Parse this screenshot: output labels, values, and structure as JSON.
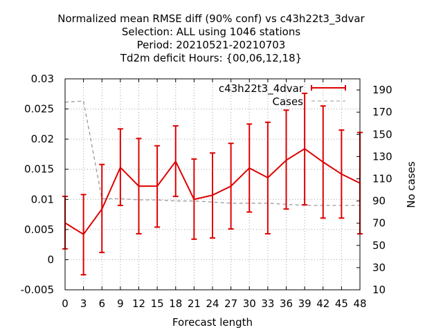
{
  "chart_data": {
    "type": "line",
    "title_lines": [
      "Normalized mean RMSE diff (90% conf) vs c43h22t3_3dvar",
      "Selection: ALL using  1046 stations",
      "Period: 20210521-20210703",
      "Td2m deficit   Hours: {00,06,12,18}"
    ],
    "xlabel": "Forecast length",
    "ylabel": "",
    "y2label": "No cases",
    "x": [
      0,
      3,
      6,
      9,
      12,
      15,
      18,
      21,
      24,
      27,
      30,
      33,
      36,
      39,
      42,
      45,
      48
    ],
    "xlim": [
      0,
      48
    ],
    "ylim": [
      -0.005,
      0.03
    ],
    "y2lim": [
      10,
      200
    ],
    "yticks": [
      -0.005,
      0,
      0.005,
      0.01,
      0.015,
      0.02,
      0.025,
      0.03
    ],
    "ytick_labels": [
      "-0.005",
      "0",
      "0.005",
      "0.01",
      "0.015",
      "0.02",
      "0.025",
      "0.03"
    ],
    "y2ticks": [
      10,
      30,
      50,
      70,
      90,
      110,
      130,
      150,
      170,
      190
    ],
    "y2tick_labels": [
      "10",
      "30",
      "50",
      "70",
      "90",
      "110",
      "130",
      "150",
      "170",
      "190"
    ],
    "xtick_labels": [
      "0",
      "3",
      "6",
      "9",
      "12",
      "15",
      "18",
      "21",
      "24",
      "27",
      "30",
      "33",
      "36",
      "39",
      "42",
      "45",
      "48"
    ],
    "grid": true,
    "legend_position": "top-right",
    "series": [
      {
        "name": "c43h22t3_4dvar",
        "color": "#dd0000",
        "axis": "left",
        "style": "line-errorbars",
        "values": [
          0.0061,
          0.0042,
          0.0084,
          0.0153,
          0.0122,
          0.0122,
          0.0163,
          0.01,
          0.0107,
          0.0122,
          0.0152,
          0.0136,
          0.0165,
          0.0184,
          0.0162,
          0.0142,
          0.0127
        ],
        "err_low": [
          0.0018,
          -0.0025,
          0.0012,
          0.009,
          0.0043,
          0.0054,
          0.0105,
          0.0034,
          0.0036,
          0.0051,
          0.0079,
          0.0043,
          0.0084,
          0.0091,
          0.0069,
          0.0069,
          0.0043
        ],
        "err_high": [
          0.0105,
          0.0108,
          0.0158,
          0.0217,
          0.0201,
          0.0189,
          0.0222,
          0.0167,
          0.0177,
          0.0193,
          0.0225,
          0.0228,
          0.0248,
          0.0276,
          0.0255,
          0.0215,
          0.0211
        ]
      },
      {
        "name": "Cases",
        "color": "#999999",
        "axis": "right",
        "style": "dashed",
        "values": [
          179,
          180,
          92,
          92,
          91,
          91,
          90,
          90,
          89,
          88,
          88,
          88,
          87,
          86,
          86,
          86,
          86
        ]
      }
    ]
  }
}
